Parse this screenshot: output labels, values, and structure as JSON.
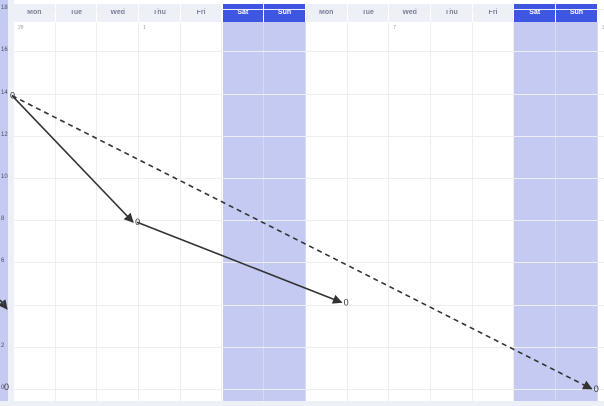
{
  "calendar": {
    "day_headers": [
      "Mon",
      "Tue",
      "Wed",
      "Thu",
      "Fri",
      "Sat",
      "Sun",
      "Mon",
      "Tue",
      "Wed",
      "Thu",
      "Fri",
      "Sat",
      "Sun"
    ],
    "weekend_flags": [
      false,
      false,
      false,
      false,
      false,
      true,
      true,
      false,
      false,
      false,
      false,
      false,
      true,
      true
    ],
    "date_labels": [
      {
        "col": 0,
        "text": "28"
      },
      {
        "col": 3,
        "text": "1"
      },
      {
        "col": 9,
        "text": "7"
      },
      {
        "col": 14,
        "text": "1"
      }
    ],
    "colors": {
      "weekend": "#c5caf2",
      "weekend_header": "#3f56e3",
      "header": "#eef0f8"
    }
  },
  "chart_data": {
    "type": "line",
    "y_ticks": [
      "0",
      "2",
      "4",
      "6",
      "8",
      "10",
      "12",
      "14",
      "16",
      "18"
    ],
    "ylim": [
      0,
      18
    ],
    "series": [
      {
        "style": "solid",
        "points": [
          {
            "day": 0,
            "value": 14,
            "label": "0"
          },
          {
            "day": 3,
            "value": 8,
            "label": "0"
          },
          {
            "day": 8,
            "value": 4.2,
            "label": "0"
          }
        ]
      },
      {
        "style": "dashed",
        "points": [
          {
            "day": 0,
            "value": 14,
            "label": ""
          },
          {
            "day": 14,
            "value": 0.1,
            "label": "0"
          }
        ]
      }
    ],
    "left_edge_point": {
      "value": 0.2,
      "label": "0"
    }
  }
}
